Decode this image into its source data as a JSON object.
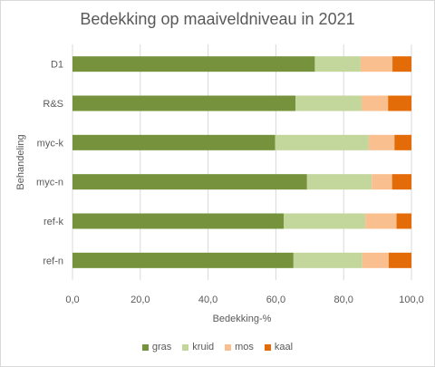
{
  "chart_data": {
    "type": "bar",
    "orientation": "horizontal",
    "stacked": true,
    "title": "Bedekking op maaiveldniveau in 2021",
    "xlabel": "Bedekking-%",
    "ylabel": "Behandeling",
    "xlim": [
      0,
      100
    ],
    "x_ticks": [
      "0,0",
      "20,0",
      "40,0",
      "60,0",
      "80,0",
      "100,0"
    ],
    "grid": "vertical",
    "legend_position": "bottom",
    "categories": [
      "D1",
      "R&S",
      "myc-k",
      "myc-n",
      "ref-k",
      "ref-n"
    ],
    "series": [
      {
        "name": "gras",
        "color": "#76923c",
        "values": [
          71.5,
          65.8,
          59.8,
          69.2,
          62.3,
          65.2
        ]
      },
      {
        "name": "kruid",
        "color": "#c3d69b",
        "values": [
          13.5,
          19.5,
          27.6,
          19.1,
          24.1,
          20.3
        ]
      },
      {
        "name": "mos",
        "color": "#fabf8f",
        "values": [
          9.4,
          7.8,
          7.6,
          6.0,
          9.2,
          7.8
        ]
      },
      {
        "name": "kaal",
        "color": "#e36c09",
        "values": [
          5.6,
          6.9,
          5.0,
          5.7,
          4.4,
          6.7
        ]
      }
    ]
  }
}
